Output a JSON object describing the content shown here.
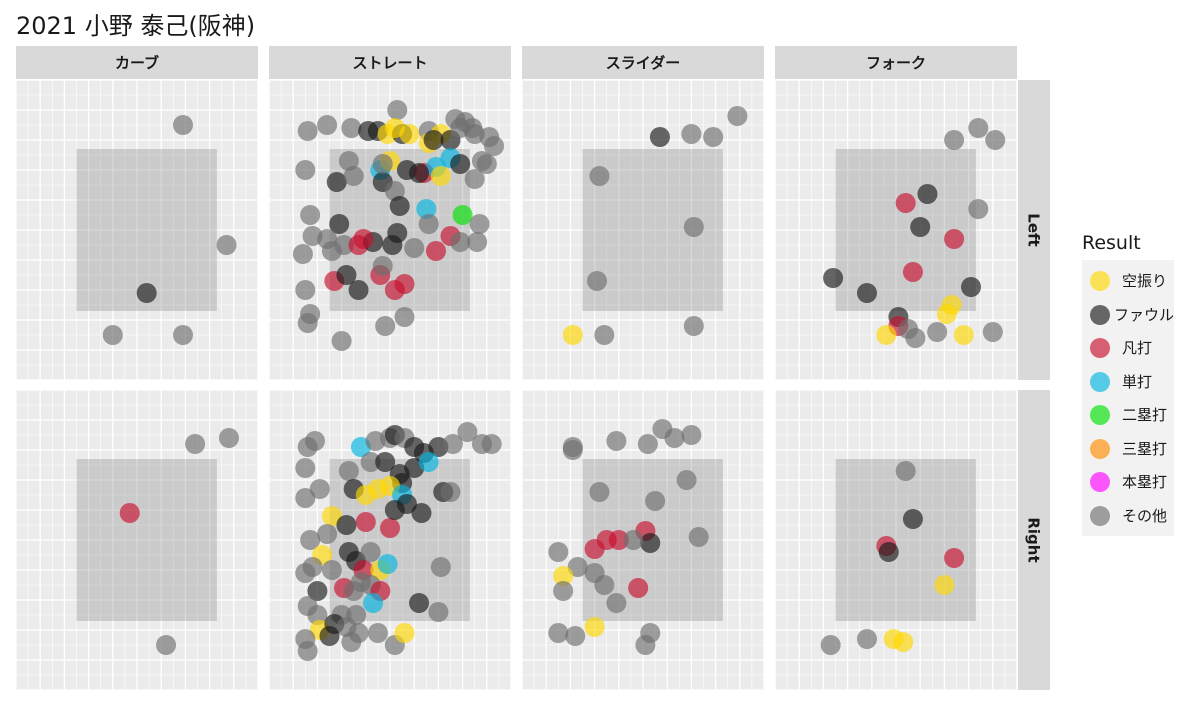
{
  "title": "2021 小野 泰己(阪神)",
  "facets": {
    "columns": [
      "カーブ",
      "ストレート",
      "スライダー",
      "フォーク"
    ],
    "rows": [
      "Left",
      "Right"
    ]
  },
  "legend": {
    "title": "Result",
    "items": [
      {
        "label": "空振り",
        "color": "#FFD700"
      },
      {
        "label": "ファウル",
        "color": "#1a1a1a"
      },
      {
        "label": "凡打",
        "color": "#C8102E"
      },
      {
        "label": "単打",
        "color": "#00B5E2"
      },
      {
        "label": "二塁打",
        "color": "#00E000"
      },
      {
        "label": "三塁打",
        "color": "#FF8C00"
      },
      {
        "label": "本塁打",
        "color": "#FF00FF"
      },
      {
        "label": "その他",
        "color": "#6e6e6e"
      }
    ]
  },
  "chart_data": {
    "type": "scatter",
    "title": "2021 小野 泰己(阪神)",
    "xlim": [
      0,
      10
    ],
    "ylim": [
      0,
      10
    ],
    "strike_zone": {
      "x": [
        2.5,
        8.3
      ],
      "y": [
        2.3,
        7.7
      ]
    },
    "grid": true,
    "legend_position": "right",
    "facet_cols": [
      "カーブ",
      "ストレート",
      "スライダー",
      "フォーク"
    ],
    "facet_rows": [
      "Left",
      "Right"
    ],
    "points": {
      "Left": {
        "カーブ": [
          [
            6.9,
            8.5,
            "その他"
          ],
          [
            8.7,
            4.5,
            "その他"
          ],
          [
            5.4,
            2.9,
            "ファウル"
          ],
          [
            4.0,
            1.5,
            "その他"
          ],
          [
            6.9,
            1.5,
            "その他"
          ]
        ],
        "ストレート": [
          [
            1.6,
            8.3,
            "その他"
          ],
          [
            2.4,
            8.5,
            "その他"
          ],
          [
            3.4,
            8.4,
            "その他"
          ],
          [
            4.1,
            8.3,
            "ファウル"
          ],
          [
            4.5,
            8.3,
            "ファウル"
          ],
          [
            4.9,
            8.2,
            "空振り"
          ],
          [
            5.5,
            8.2,
            "ファウル"
          ],
          [
            5.8,
            8.2,
            "空振り"
          ],
          [
            6.6,
            8.3,
            "その他"
          ],
          [
            7.1,
            8.2,
            "空振り"
          ],
          [
            7.5,
            8.0,
            "ファウル"
          ],
          [
            7.9,
            8.4,
            "その他"
          ],
          [
            8.5,
            8.2,
            "その他"
          ],
          [
            9.1,
            8.1,
            "その他"
          ],
          [
            9.3,
            7.8,
            "その他"
          ],
          [
            8.8,
            7.3,
            "その他"
          ],
          [
            5.3,
            9.0,
            "その他"
          ],
          [
            7.7,
            8.7,
            "その他"
          ],
          [
            1.5,
            7.0,
            "その他"
          ],
          [
            3.3,
            7.3,
            "その他"
          ],
          [
            2.8,
            6.6,
            "ファウル"
          ],
          [
            3.5,
            6.8,
            "その他"
          ],
          [
            4.6,
            7.0,
            "単打"
          ],
          [
            5.0,
            7.3,
            "空振り"
          ],
          [
            5.7,
            7.0,
            "ファウル"
          ],
          [
            6.4,
            6.9,
            "凡打"
          ],
          [
            6.9,
            7.1,
            "単打"
          ],
          [
            7.1,
            6.8,
            "空振り"
          ],
          [
            7.5,
            7.4,
            "単打"
          ],
          [
            7.9,
            7.2,
            "ファウル"
          ],
          [
            8.5,
            6.7,
            "その他"
          ],
          [
            9.0,
            7.2,
            "その他"
          ],
          [
            1.7,
            5.5,
            "その他"
          ],
          [
            2.9,
            5.2,
            "ファウル"
          ],
          [
            4.7,
            6.6,
            "ファウル"
          ],
          [
            5.2,
            6.3,
            "その他"
          ],
          [
            5.4,
            5.8,
            "ファウル"
          ],
          [
            6.5,
            5.7,
            "単打"
          ],
          [
            8.0,
            5.5,
            "二塁打"
          ],
          [
            8.7,
            5.2,
            "その他"
          ],
          [
            1.8,
            4.8,
            "その他"
          ],
          [
            2.4,
            4.7,
            "その他"
          ],
          [
            3.1,
            4.5,
            "その他"
          ],
          [
            3.7,
            4.5,
            "凡打"
          ],
          [
            4.3,
            4.6,
            "ファウル"
          ],
          [
            5.3,
            4.9,
            "ファウル"
          ],
          [
            6.0,
            4.4,
            "その他"
          ],
          [
            6.9,
            4.3,
            "凡打"
          ],
          [
            7.5,
            4.8,
            "凡打"
          ],
          [
            7.9,
            4.6,
            "その他"
          ],
          [
            8.6,
            4.6,
            "その他"
          ],
          [
            1.4,
            4.2,
            "その他"
          ],
          [
            2.6,
            4.3,
            "その他"
          ],
          [
            3.9,
            4.7,
            "凡打"
          ],
          [
            1.5,
            3.0,
            "その他"
          ],
          [
            2.7,
            3.3,
            "凡打"
          ],
          [
            3.2,
            3.5,
            "ファウル"
          ],
          [
            3.7,
            3.0,
            "ファウル"
          ],
          [
            4.6,
            3.5,
            "凡打"
          ],
          [
            4.7,
            3.8,
            "その他"
          ],
          [
            5.6,
            3.2,
            "凡打"
          ],
          [
            5.2,
            3.0,
            "凡打"
          ],
          [
            1.6,
            1.9,
            "その他"
          ],
          [
            3.0,
            1.3,
            "その他"
          ],
          [
            4.8,
            1.8,
            "その他"
          ],
          [
            5.6,
            2.1,
            "その他"
          ],
          [
            1.7,
            2.2,
            "その他"
          ],
          [
            6.6,
            7.9,
            "空振り"
          ],
          [
            4.7,
            7.2,
            "その他"
          ],
          [
            5.2,
            8.4,
            "空振り"
          ],
          [
            6.2,
            6.9,
            "ファウル"
          ],
          [
            8.1,
            8.6,
            "その他"
          ],
          [
            6.8,
            8.0,
            "ファウル"
          ],
          [
            8.4,
            8.4,
            "その他"
          ],
          [
            5.1,
            4.5,
            "ファウル"
          ],
          [
            6.6,
            5.2,
            "その他"
          ]
        ],
        "スライダー": [
          [
            5.7,
            8.1,
            "ファウル"
          ],
          [
            7.0,
            8.2,
            "その他"
          ],
          [
            7.9,
            8.1,
            "その他"
          ],
          [
            8.9,
            8.8,
            "その他"
          ],
          [
            3.2,
            6.8,
            "その他"
          ],
          [
            7.1,
            5.1,
            "その他"
          ],
          [
            3.1,
            3.3,
            "その他"
          ],
          [
            2.1,
            1.5,
            "空振り"
          ],
          [
            3.4,
            1.5,
            "その他"
          ],
          [
            7.1,
            1.8,
            "その他"
          ]
        ],
        "フォーク": [
          [
            7.4,
            8.0,
            "その他"
          ],
          [
            8.4,
            8.4,
            "その他"
          ],
          [
            9.1,
            8.0,
            "その他"
          ],
          [
            6.3,
            6.2,
            "ファウル"
          ],
          [
            5.4,
            5.9,
            "凡打"
          ],
          [
            8.4,
            5.7,
            "その他"
          ],
          [
            6.0,
            5.1,
            "ファウル"
          ],
          [
            7.4,
            4.7,
            "凡打"
          ],
          [
            5.7,
            3.6,
            "凡打"
          ],
          [
            2.4,
            3.4,
            "ファウル"
          ],
          [
            3.8,
            2.9,
            "ファウル"
          ],
          [
            8.1,
            3.1,
            "ファウル"
          ],
          [
            7.3,
            2.5,
            "空振り"
          ],
          [
            7.1,
            2.2,
            "空振り"
          ],
          [
            5.1,
            2.1,
            "ファウル"
          ],
          [
            5.1,
            1.8,
            "凡打"
          ],
          [
            5.5,
            1.7,
            "その他"
          ],
          [
            5.8,
            1.4,
            "その他"
          ],
          [
            6.7,
            1.6,
            "その他"
          ],
          [
            4.6,
            1.5,
            "空振り"
          ],
          [
            7.8,
            1.5,
            "空振り"
          ],
          [
            9.0,
            1.6,
            "その他"
          ]
        ]
      },
      "Right": {
        "カーブ": [
          [
            7.4,
            8.2,
            "その他"
          ],
          [
            8.8,
            8.4,
            "その他"
          ],
          [
            4.7,
            5.9,
            "凡打"
          ],
          [
            6.2,
            1.5,
            "その他"
          ]
        ],
        "ストレート": [
          [
            3.8,
            8.1,
            "単打"
          ],
          [
            4.4,
            8.3,
            "その他"
          ],
          [
            5.0,
            8.4,
            "その他"
          ],
          [
            5.2,
            8.5,
            "ファウル"
          ],
          [
            5.6,
            8.4,
            "その他"
          ],
          [
            6.0,
            8.1,
            "ファウル"
          ],
          [
            6.4,
            7.9,
            "ファウル"
          ],
          [
            7.0,
            8.1,
            "ファウル"
          ],
          [
            7.6,
            8.2,
            "その他"
          ],
          [
            8.2,
            8.6,
            "その他"
          ],
          [
            8.8,
            8.2,
            "その他"
          ],
          [
            9.2,
            8.2,
            "その他"
          ],
          [
            1.6,
            8.1,
            "その他"
          ],
          [
            1.9,
            8.3,
            "その他"
          ],
          [
            1.5,
            7.4,
            "その他"
          ],
          [
            3.3,
            7.3,
            "その他"
          ],
          [
            4.2,
            7.6,
            "その他"
          ],
          [
            4.8,
            7.6,
            "ファウル"
          ],
          [
            5.4,
            7.2,
            "ファウル"
          ],
          [
            6.0,
            7.4,
            "ファウル"
          ],
          [
            6.6,
            7.6,
            "単打"
          ],
          [
            5.5,
            6.9,
            "ファウル"
          ],
          [
            3.5,
            6.7,
            "ファウル"
          ],
          [
            4.0,
            6.5,
            "空振り"
          ],
          [
            4.5,
            6.7,
            "空振り"
          ],
          [
            5.0,
            6.8,
            "空振り"
          ],
          [
            5.5,
            6.5,
            "単打"
          ],
          [
            5.7,
            6.2,
            "ファウル"
          ],
          [
            7.2,
            6.6,
            "ファウル"
          ],
          [
            7.5,
            6.6,
            "その他"
          ],
          [
            1.5,
            6.4,
            "その他"
          ],
          [
            2.1,
            6.7,
            "その他"
          ],
          [
            2.6,
            5.8,
            "空振り"
          ],
          [
            3.2,
            5.5,
            "ファウル"
          ],
          [
            4.0,
            5.6,
            "凡打"
          ],
          [
            5.0,
            5.4,
            "凡打"
          ],
          [
            6.3,
            5.9,
            "ファウル"
          ],
          [
            5.2,
            6.0,
            "ファウル"
          ],
          [
            1.7,
            5.0,
            "その他"
          ],
          [
            2.4,
            5.2,
            "その他"
          ],
          [
            2.2,
            4.5,
            "空振り"
          ],
          [
            3.3,
            4.6,
            "ファウル"
          ],
          [
            3.6,
            4.3,
            "ファウル"
          ],
          [
            4.2,
            4.6,
            "その他"
          ],
          [
            1.8,
            4.1,
            "その他"
          ],
          [
            2.6,
            4.0,
            "その他"
          ],
          [
            3.9,
            4.0,
            "凡打"
          ],
          [
            4.6,
            4.0,
            "空振り"
          ],
          [
            4.9,
            4.2,
            "単打"
          ],
          [
            7.1,
            4.1,
            "その他"
          ],
          [
            1.5,
            3.9,
            "その他"
          ],
          [
            2.0,
            3.3,
            "ファウル"
          ],
          [
            3.1,
            3.4,
            "凡打"
          ],
          [
            3.5,
            3.3,
            "その他"
          ],
          [
            4.2,
            3.5,
            "その他"
          ],
          [
            4.6,
            3.3,
            "凡打"
          ],
          [
            4.3,
            2.9,
            "単打"
          ],
          [
            3.8,
            3.6,
            "その他"
          ],
          [
            6.2,
            2.9,
            "ファウル"
          ],
          [
            7.0,
            2.6,
            "その他"
          ],
          [
            1.6,
            2.8,
            "その他"
          ],
          [
            2.0,
            2.5,
            "その他"
          ],
          [
            3.0,
            2.5,
            "その他"
          ],
          [
            3.6,
            2.5,
            "その他"
          ],
          [
            2.1,
            2.0,
            "空振り"
          ],
          [
            2.7,
            2.2,
            "ファウル"
          ],
          [
            3.2,
            2.1,
            "その他"
          ],
          [
            3.7,
            1.9,
            "その他"
          ],
          [
            4.5,
            1.9,
            "その他"
          ],
          [
            5.2,
            1.5,
            "その他"
          ],
          [
            5.6,
            1.9,
            "空振り"
          ],
          [
            1.5,
            1.7,
            "その他"
          ],
          [
            1.6,
            1.3,
            "その他"
          ],
          [
            3.4,
            1.6,
            "その他"
          ],
          [
            2.5,
            1.8,
            "ファウル"
          ]
        ],
        "スライダー": [
          [
            2.1,
            8.0,
            "その他"
          ],
          [
            3.9,
            8.3,
            "その他"
          ],
          [
            5.2,
            8.2,
            "その他"
          ],
          [
            5.8,
            8.7,
            "その他"
          ],
          [
            6.3,
            8.4,
            "その他"
          ],
          [
            7.0,
            8.5,
            "その他"
          ],
          [
            2.1,
            8.1,
            "その他"
          ],
          [
            6.8,
            7.0,
            "その他"
          ],
          [
            3.2,
            6.6,
            "その他"
          ],
          [
            5.5,
            6.3,
            "その他"
          ],
          [
            7.3,
            5.1,
            "その他"
          ],
          [
            3.5,
            5.0,
            "凡打"
          ],
          [
            3.0,
            4.7,
            "凡打"
          ],
          [
            4.0,
            5.0,
            "凡打"
          ],
          [
            5.1,
            5.3,
            "凡打"
          ],
          [
            5.3,
            4.9,
            "ファウル"
          ],
          [
            1.5,
            4.6,
            "その他"
          ],
          [
            2.3,
            4.1,
            "その他"
          ],
          [
            3.0,
            3.9,
            "その他"
          ],
          [
            1.7,
            3.8,
            "空振り"
          ],
          [
            3.4,
            3.5,
            "その他"
          ],
          [
            4.8,
            3.4,
            "凡打"
          ],
          [
            1.7,
            3.3,
            "その他"
          ],
          [
            3.9,
            2.9,
            "その他"
          ],
          [
            4.6,
            5.0,
            "その他"
          ],
          [
            1.5,
            1.9,
            "その他"
          ],
          [
            2.2,
            1.8,
            "その他"
          ],
          [
            3.0,
            2.1,
            "空振り"
          ],
          [
            5.3,
            1.9,
            "その他"
          ],
          [
            5.1,
            1.5,
            "その他"
          ]
        ],
        "フォーク": [
          [
            5.4,
            7.3,
            "その他"
          ],
          [
            5.7,
            5.7,
            "ファウル"
          ],
          [
            4.6,
            4.8,
            "凡打"
          ],
          [
            4.7,
            4.6,
            "ファウル"
          ],
          [
            7.4,
            4.4,
            "凡打"
          ],
          [
            7.0,
            3.5,
            "空振り"
          ],
          [
            2.3,
            1.5,
            "その他"
          ],
          [
            3.8,
            1.7,
            "その他"
          ],
          [
            4.9,
            1.7,
            "空振り"
          ],
          [
            5.3,
            1.6,
            "空振り"
          ]
        ]
      }
    }
  }
}
